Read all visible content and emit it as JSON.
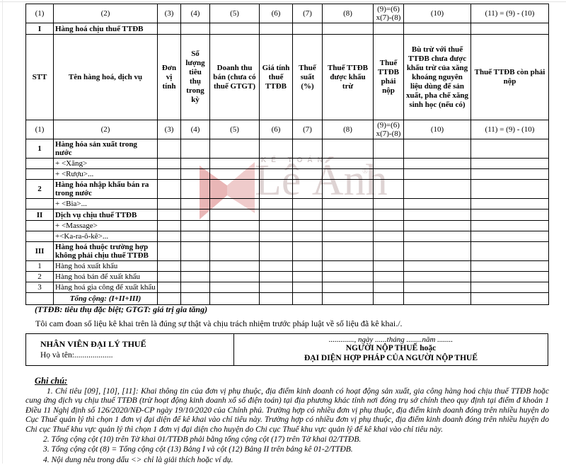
{
  "watermark": {
    "small_text": "KẾ TOÁN",
    "brand": "Lê Ánh",
    "reg": "®",
    "logo_color": "#d98c8c",
    "text_color": "#beA8a8"
  },
  "table": {
    "number_headers": [
      "(1)",
      "(2)",
      "(3)",
      "(4)",
      "(5)",
      "(6)",
      "(7)",
      "(8)",
      "(9)=(6)\nx(7)-(8)",
      "(10)",
      "(11) = (9) - (10)"
    ],
    "main_headers": [
      "STT",
      "Tên hàng hoá, dịch vụ",
      "Đơn vị tính",
      "Số lượng tiêu thụ trong kỳ",
      "Doanh thu bán (chưa có thuế GTGT)",
      "Giá tính thuế TTĐB",
      "Thuế suất (%)",
      "Thuế TTĐB được khấu trừ",
      "Thuế TTĐB phải nộp",
      "Bù trừ với thuế TTĐB chưa được khấu trừ của xăng khoáng nguyên liệu dùng để sản xuất, pha chế xăng sinh học (nếu có)",
      "Thuế TTĐB còn phải nộp"
    ],
    "rows": [
      {
        "kind": "nums"
      },
      {
        "kind": "section",
        "no": "I",
        "label": "Hàng hoá chịu thuế TTĐB"
      },
      {
        "kind": "head"
      },
      {
        "kind": "nums"
      },
      {
        "kind": "group",
        "no": "1",
        "label": "Hàng hóa sản xuất trong nước"
      },
      {
        "kind": "sub",
        "no": "",
        "label": "+ <Xăng>"
      },
      {
        "kind": "sub",
        "no": "",
        "label": "+ <Rượu>..."
      },
      {
        "kind": "group",
        "no": "2",
        "label": "Hàng hóa nhập khẩu bán ra trong nước"
      },
      {
        "kind": "sub",
        "no": "",
        "label": "+ <Bia>..."
      },
      {
        "kind": "section",
        "no": "II",
        "label": "Dịch vụ chịu thuế TTĐB"
      },
      {
        "kind": "sub",
        "no": "",
        "label": "+ <Massage>"
      },
      {
        "kind": "sub",
        "no": "",
        "label": "+<Ka-ra-ô-kê>..."
      },
      {
        "kind": "group",
        "no": "III",
        "label": "Hàng hoá thuộc trường hợp không phải chịu thuế TTĐB"
      },
      {
        "kind": "plain",
        "no": "1",
        "label": "Hàng hoá xuất khẩu"
      },
      {
        "kind": "plain",
        "no": "2",
        "label": "Hàng hoá bán để xuất khẩu"
      },
      {
        "kind": "plain",
        "no": "3",
        "label": "Hàng hoá gia công để xuất khẩu"
      },
      {
        "kind": "total",
        "no": "",
        "label": "Tổng cộng: (I+II+III)"
      }
    ]
  },
  "footer": {
    "abbreviation_note": "(TTĐB: tiêu thụ đặc biệt; GTGT: giá trị gia tăng)",
    "declaration": "Tôi cam đoan số liệu kê khai trên là đúng sự thật và chịu trách nhiệm trước pháp luật về số liệu đã kê khai./."
  },
  "signature": {
    "left_title": "NHÂN VIÊN ĐẠI LÝ THUẾ",
    "left_name_line": "Họ và tên:...................",
    "right_date_line": "............., ngày ......tháng ........năm ........",
    "right_line1": "NGƯỜI NỘP THUẾ hoặc",
    "right_line2": "ĐẠI DIỆN HỢP PHÁP CỦA NGƯỜI NỘP THUẾ"
  },
  "notes": {
    "heading": "Ghi chú:",
    "items": [
      "1. Chỉ tiêu [09], [10], [11]: Khai thông tin của đơn vị phụ thuộc, địa điểm kinh doanh có hoạt động sản xuất, gia công hàng hoá chịu thuế TTĐB hoặc cung ứng dịch vụ chịu thuế TTĐB (trừ hoạt động kinh doanh xổ số điện toán) tại địa phương khác tỉnh nơi đóng trụ sở chính theo quy định tại điểm đ khoản 1 Điều 11 Nghị định số 126/2020/NĐ-CP ngày 19/10/2020 của Chính phủ. Trường hợp có nhiều đơn vị phụ thuộc, địa điểm kinh doanh đóng trên nhiều huyện do Cục Thuế quản lý thì chọn 1 đơn vị đại diện để kê khai vào chỉ tiêu này. Trường hợp có nhiều đơn vị phụ thuộc, địa điểm kinh doanh đóng trên nhiều huyện do Chi cục Thuế khu vực quản lý thì chọn 1 đơn vị đại diện cho huyện do Chi cục Thuế khu vực quản lý để kê khai vào chỉ tiêu này.",
      "2. Tổng cộng cột (10) trên Tờ khai 01/TTĐB phải bằng tổng cộng cột (17) trên Tờ khai 02/TTĐB.",
      "3. Tổng cộng cột (8) = Tổng cộng cột (13) Bảng I và cột (12) Bảng II trên bảng kê 01-2/TTĐB.",
      "4. Nội dung nêu trong dấu <> chỉ là giải thích hoặc ví dụ."
    ]
  }
}
